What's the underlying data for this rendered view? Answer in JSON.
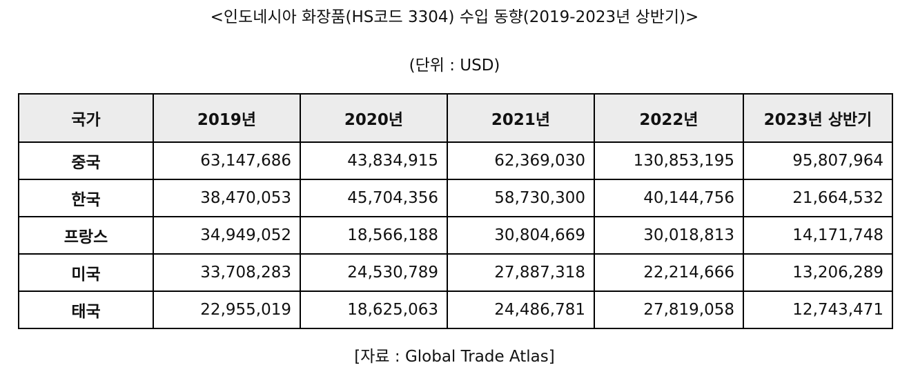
{
  "title": "<인도네시아 화장품(HS코드 3304) 수입 동향(2019-2023년 상반기)>",
  "unit": "(단위 : USD)",
  "table": {
    "headers": [
      "국가",
      "2019년",
      "2020년",
      "2021년",
      "2022년",
      "2023년 상반기"
    ],
    "rows": [
      {
        "country": "중국",
        "values": [
          "63,147,686",
          "43,834,915",
          "62,369,030",
          "130,853,195",
          "95,807,964"
        ]
      },
      {
        "country": "한국",
        "values": [
          "38,470,053",
          "45,704,356",
          "58,730,300",
          "40,144,756",
          "21,664,532"
        ]
      },
      {
        "country": "프랑스",
        "values": [
          "34,949,052",
          "18,566,188",
          "30,804,669",
          "30,018,813",
          "14,171,748"
        ]
      },
      {
        "country": "미국",
        "values": [
          "33,708,283",
          "24,530,789",
          "27,887,318",
          "22,214,666",
          "13,206,289"
        ]
      },
      {
        "country": "태국",
        "values": [
          "22,955,019",
          "18,625,063",
          "24,486,781",
          "27,819,058",
          "12,743,471"
        ]
      }
    ]
  },
  "source": "[자료 : Global Trade Atlas]"
}
